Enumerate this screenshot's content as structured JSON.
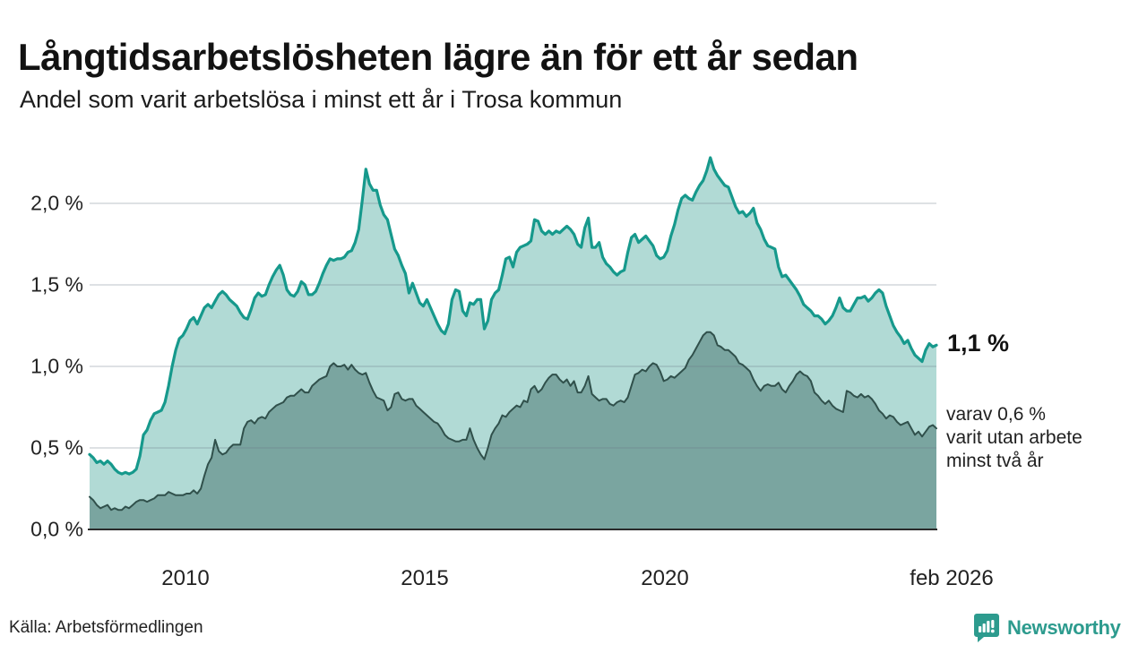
{
  "header": {
    "title": "Långtidsarbetslösheten lägre än för ett år sedan",
    "subtitle": "Andel som varit arbetslösa i minst ett år i Trosa kommun"
  },
  "annotations": {
    "latest_total": "1,1 %",
    "latest_two_year_line1": "varav 0,6 %",
    "latest_two_year_line2": "varit utan arbete",
    "latest_two_year_line3": "minst två år"
  },
  "footer": {
    "source": "Källa: Arbetsförmedlingen",
    "brand": "Newsworthy"
  },
  "colors": {
    "line_one_year": "#16998c",
    "fill_one_year": "#b1dad5",
    "line_two_year": "#30504b",
    "fill_two_year": "#7aa5a0",
    "axis": "#2b2b2b",
    "gridline": "rgba(105,120,130,0.22)",
    "brand_teal": "#2d9b8e"
  },
  "chart_data": {
    "type": "area",
    "title": "Andel som varit arbetslösa i minst ett år i Trosa kommun",
    "x_axis": {
      "tick_labels": [
        "2010",
        "2015",
        "2020",
        "feb 2026"
      ],
      "range": [
        "nov 2007",
        "feb 2026"
      ],
      "freq": "monthly"
    },
    "y_axis": {
      "tick_labels": [
        "0,0 %",
        "0,5 %",
        "1,0 %",
        "1,5 %",
        "2,0 %"
      ],
      "tick_values": [
        0,
        0.5,
        1.0,
        1.5,
        2.0
      ],
      "ylim": [
        0,
        2.35
      ],
      "unit": "% av befolkningen"
    },
    "legend_position": "end-of-line labels, right side",
    "grid": true,
    "series": [
      {
        "name": "Arbetslösa minst ett år",
        "end_value_label": "1,1 %",
        "values": [
          0.46,
          0.44,
          0.41,
          0.42,
          0.4,
          0.42,
          0.4,
          0.37,
          0.35,
          0.34,
          0.35,
          0.34,
          0.35,
          0.37,
          0.45,
          0.58,
          0.61,
          0.67,
          0.71,
          0.72,
          0.73,
          0.78,
          0.88,
          1.0,
          1.1,
          1.17,
          1.19,
          1.23,
          1.28,
          1.3,
          1.26,
          1.31,
          1.36,
          1.38,
          1.36,
          1.4,
          1.44,
          1.46,
          1.44,
          1.41,
          1.39,
          1.37,
          1.33,
          1.3,
          1.29,
          1.35,
          1.42,
          1.45,
          1.43,
          1.44,
          1.5,
          1.55,
          1.59,
          1.62,
          1.56,
          1.47,
          1.44,
          1.43,
          1.46,
          1.52,
          1.5,
          1.44,
          1.44,
          1.46,
          1.51,
          1.57,
          1.62,
          1.66,
          1.65,
          1.66,
          1.66,
          1.67,
          1.7,
          1.71,
          1.76,
          1.84,
          2.02,
          2.21,
          2.12,
          2.08,
          2.08,
          1.99,
          1.93,
          1.9,
          1.81,
          1.72,
          1.68,
          1.62,
          1.57,
          1.45,
          1.51,
          1.45,
          1.39,
          1.37,
          1.41,
          1.36,
          1.31,
          1.26,
          1.22,
          1.2,
          1.26,
          1.41,
          1.47,
          1.46,
          1.34,
          1.31,
          1.39,
          1.38,
          1.41,
          1.41,
          1.23,
          1.28,
          1.41,
          1.45,
          1.47,
          1.56,
          1.66,
          1.67,
          1.61,
          1.7,
          1.73,
          1.74,
          1.75,
          1.77,
          1.9,
          1.89,
          1.83,
          1.81,
          1.83,
          1.81,
          1.83,
          1.82,
          1.84,
          1.86,
          1.84,
          1.81,
          1.75,
          1.73,
          1.85,
          1.91,
          1.73,
          1.73,
          1.76,
          1.67,
          1.63,
          1.61,
          1.58,
          1.56,
          1.58,
          1.59,
          1.7,
          1.79,
          1.81,
          1.76,
          1.78,
          1.8,
          1.77,
          1.74,
          1.68,
          1.66,
          1.67,
          1.71,
          1.8,
          1.87,
          1.96,
          2.03,
          2.05,
          2.03,
          2.02,
          2.07,
          2.11,
          2.14,
          2.2,
          2.28,
          2.21,
          2.17,
          2.14,
          2.11,
          2.1,
          2.04,
          1.98,
          1.94,
          1.95,
          1.92,
          1.94,
          1.97,
          1.88,
          1.84,
          1.78,
          1.74,
          1.73,
          1.72,
          1.61,
          1.55,
          1.56,
          1.53,
          1.5,
          1.47,
          1.43,
          1.38,
          1.36,
          1.34,
          1.31,
          1.31,
          1.29,
          1.26,
          1.28,
          1.31,
          1.36,
          1.42,
          1.36,
          1.34,
          1.34,
          1.38,
          1.42,
          1.42,
          1.43,
          1.4,
          1.42,
          1.45,
          1.47,
          1.45,
          1.37,
          1.31,
          1.25,
          1.21,
          1.18,
          1.14,
          1.16,
          1.11,
          1.07,
          1.05,
          1.03,
          1.1,
          1.14,
          1.12,
          1.13
        ]
      },
      {
        "name": "Arbetslösa minst två år",
        "end_value_label": "varav 0,6 % varit utan arbete minst två år",
        "values": [
          0.2,
          0.18,
          0.15,
          0.13,
          0.14,
          0.15,
          0.12,
          0.13,
          0.12,
          0.12,
          0.14,
          0.13,
          0.15,
          0.17,
          0.18,
          0.18,
          0.17,
          0.18,
          0.19,
          0.21,
          0.21,
          0.21,
          0.23,
          0.22,
          0.21,
          0.21,
          0.21,
          0.22,
          0.22,
          0.24,
          0.22,
          0.25,
          0.33,
          0.4,
          0.44,
          0.55,
          0.48,
          0.46,
          0.47,
          0.5,
          0.52,
          0.52,
          0.52,
          0.62,
          0.66,
          0.67,
          0.65,
          0.68,
          0.69,
          0.68,
          0.72,
          0.74,
          0.76,
          0.77,
          0.78,
          0.81,
          0.82,
          0.82,
          0.84,
          0.86,
          0.84,
          0.84,
          0.88,
          0.9,
          0.92,
          0.93,
          0.94,
          1.0,
          1.02,
          1.0,
          1.0,
          1.01,
          0.98,
          1.01,
          0.98,
          0.96,
          0.95,
          0.96,
          0.9,
          0.85,
          0.81,
          0.8,
          0.79,
          0.73,
          0.75,
          0.83,
          0.84,
          0.8,
          0.79,
          0.8,
          0.8,
          0.76,
          0.74,
          0.72,
          0.7,
          0.68,
          0.66,
          0.65,
          0.62,
          0.58,
          0.56,
          0.55,
          0.54,
          0.54,
          0.55,
          0.55,
          0.62,
          0.55,
          0.5,
          0.46,
          0.43,
          0.5,
          0.58,
          0.62,
          0.65,
          0.7,
          0.69,
          0.72,
          0.74,
          0.76,
          0.75,
          0.79,
          0.78,
          0.86,
          0.88,
          0.84,
          0.86,
          0.9,
          0.93,
          0.95,
          0.95,
          0.92,
          0.9,
          0.92,
          0.88,
          0.91,
          0.84,
          0.84,
          0.88,
          0.94,
          0.83,
          0.81,
          0.79,
          0.8,
          0.8,
          0.77,
          0.76,
          0.78,
          0.79,
          0.78,
          0.81,
          0.88,
          0.95,
          0.96,
          0.98,
          0.97,
          1.0,
          1.02,
          1.01,
          0.97,
          0.91,
          0.92,
          0.94,
          0.93,
          0.95,
          0.97,
          0.99,
          1.04,
          1.07,
          1.11,
          1.15,
          1.19,
          1.21,
          1.21,
          1.19,
          1.13,
          1.12,
          1.1,
          1.1,
          1.08,
          1.06,
          1.02,
          1.01,
          0.99,
          0.97,
          0.92,
          0.88,
          0.85,
          0.88,
          0.89,
          0.88,
          0.88,
          0.9,
          0.86,
          0.84,
          0.88,
          0.91,
          0.95,
          0.97,
          0.95,
          0.94,
          0.91,
          0.84,
          0.82,
          0.79,
          0.77,
          0.79,
          0.76,
          0.74,
          0.73,
          0.72,
          0.85,
          0.84,
          0.82,
          0.81,
          0.83,
          0.81,
          0.82,
          0.8,
          0.77,
          0.73,
          0.71,
          0.68,
          0.7,
          0.69,
          0.66,
          0.64,
          0.65,
          0.66,
          0.62,
          0.58,
          0.6,
          0.57,
          0.6,
          0.63,
          0.64,
          0.62
        ]
      }
    ]
  }
}
